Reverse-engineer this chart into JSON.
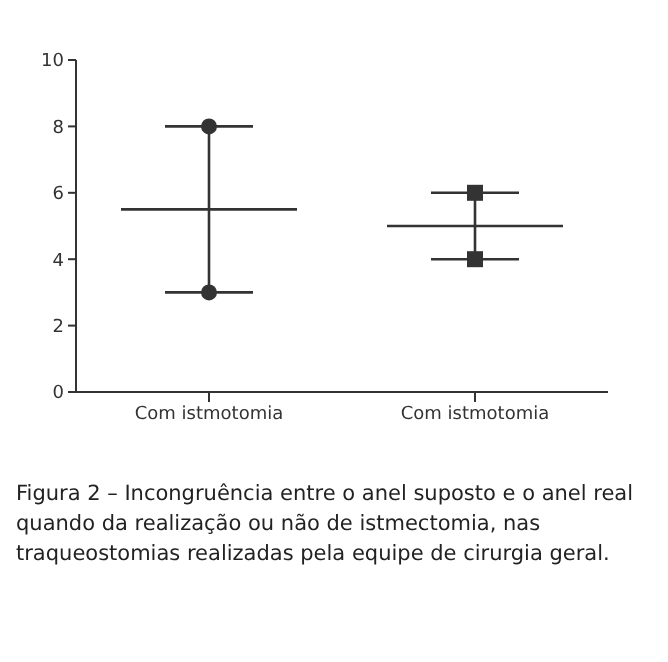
{
  "chart_data": {
    "type": "box",
    "categories": [
      "Com istmotomia",
      "Com istmotomia"
    ],
    "boxes": [
      {
        "low": 3,
        "q1": 5.5,
        "median": 5.5,
        "q3": 5.5,
        "high": 8
      },
      {
        "low": 4,
        "q1": 5,
        "median": 5,
        "q3": 5,
        "high": 6
      }
    ],
    "series": [
      {
        "type": "scatter",
        "marker": "circle",
        "color": "#333333",
        "values": [
          8,
          null
        ]
      },
      {
        "type": "scatter",
        "marker": "circle",
        "color": "#333333",
        "values": [
          3,
          null
        ]
      },
      {
        "type": "scatter",
        "marker": "square",
        "color": "#333333",
        "values": [
          null,
          6
        ]
      },
      {
        "type": "scatter",
        "marker": "square",
        "color": "#333333",
        "values": [
          null,
          4
        ]
      }
    ],
    "ylim": [
      0,
      10
    ],
    "yticks": [
      0,
      2,
      4,
      6,
      8,
      10
    ],
    "grid": false,
    "legend": false,
    "annotations": [
      "Figura 2 – Incongruência entre o anel suposto e o anel real quando da realização ou não de istmectomia, nas traqueostomias realizadas pela equipe de cirurgia geral."
    ]
  }
}
